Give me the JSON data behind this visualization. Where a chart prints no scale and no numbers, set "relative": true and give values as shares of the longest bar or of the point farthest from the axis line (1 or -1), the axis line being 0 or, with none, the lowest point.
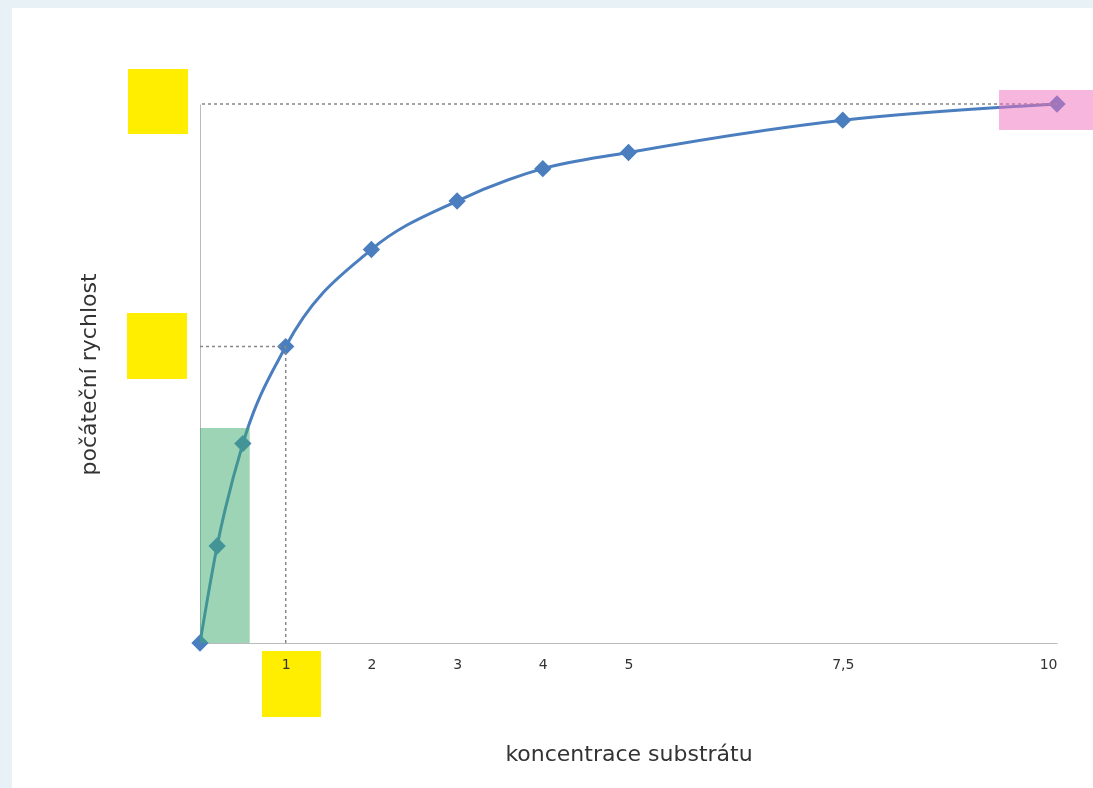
{
  "chart_data": {
    "type": "line",
    "xlabel": "koncentrace substrátu",
    "ylabel": "počáteční rychlost",
    "relative": true,
    "x": [
      0,
      0.2,
      0.5,
      1,
      2,
      3,
      4,
      5,
      7.5,
      10
    ],
    "series": [
      {
        "color": "#4a7ebf",
        "values": [
          0,
          0.18,
          0.37,
          0.55,
          0.73,
          0.82,
          0.88,
          0.91,
          0.97,
          1
        ]
      }
    ],
    "xlim": [
      0,
      10
    ],
    "xticks": [
      1,
      2,
      3,
      4,
      5,
      {
        "value": 7.5,
        "label": "7,5"
      },
      10
    ],
    "ref_lines": [
      {
        "axis": "y",
        "value": 1,
        "color": "#888888",
        "line_style": "dotted"
      },
      {
        "axis": "y",
        "value": 0.55,
        "color": "#888888",
        "line_style": "dotted"
      },
      {
        "axis": "x",
        "value": 1,
        "color": "#888888",
        "line_style": "dotted"
      }
    ],
    "bands": [
      {
        "axis": "x",
        "from": 0,
        "to": 0.58,
        "color": "#3caa6e"
      }
    ],
    "marker": "diamond",
    "line_style": "solid",
    "grid": false
  }
}
